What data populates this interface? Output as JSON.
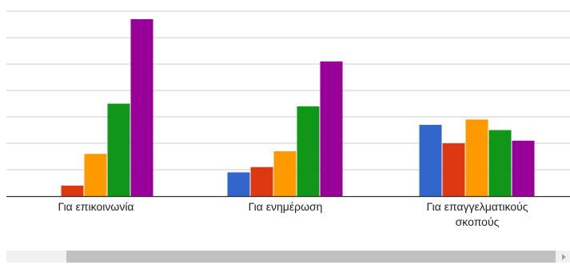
{
  "chart_data": {
    "type": "bar",
    "categories": [
      "Για επικοινωνία",
      "Για ενημέρωση",
      "Για επαγγελματικούς\nσκοπούς"
    ],
    "series": [
      {
        "color": "#3366cc",
        "values": [
          0,
          9,
          27
        ]
      },
      {
        "color": "#dc3912",
        "values": [
          4,
          11,
          20
        ]
      },
      {
        "color": "#ff9900",
        "values": [
          16,
          17,
          29
        ]
      },
      {
        "color": "#109618",
        "values": [
          35,
          34,
          25
        ]
      },
      {
        "color": "#990099",
        "values": [
          67,
          51,
          21
        ]
      }
    ],
    "ylim": [
      0,
      70
    ],
    "grid": true,
    "gridline_step": 10,
    "legend": "none"
  }
}
